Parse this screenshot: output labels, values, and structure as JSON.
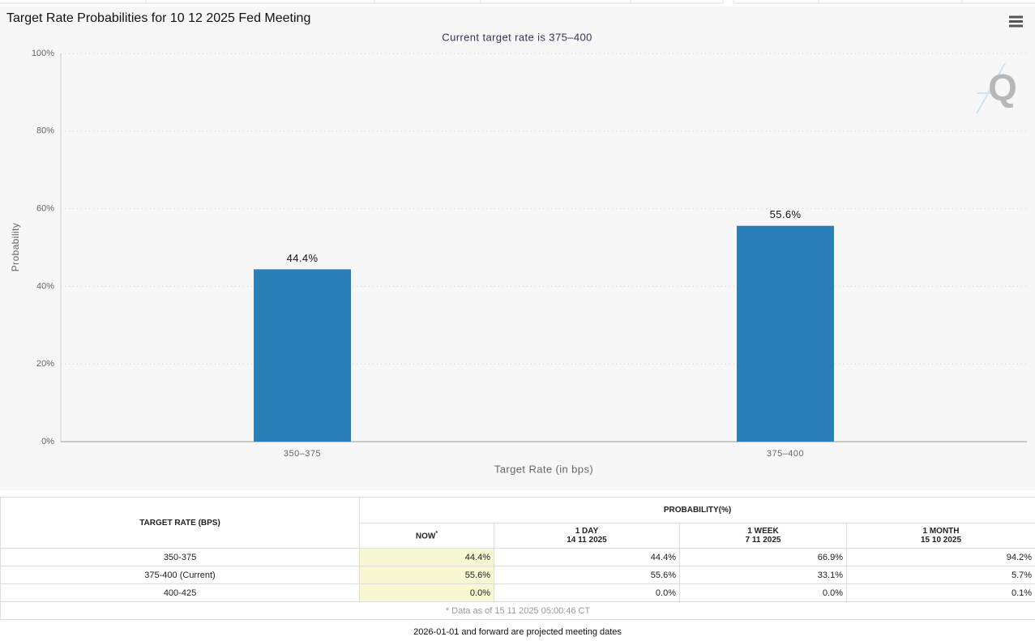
{
  "chart_data": {
    "type": "bar",
    "title": "Target Rate Probabilities for 10 12 2025 Fed Meeting",
    "subtitle": "Current target rate is 375–400",
    "x_label": "Target Rate (in bps)",
    "y_label": "Probability",
    "categories": [
      "350–375",
      "375–400"
    ],
    "values": [
      44.4,
      55.6
    ],
    "value_labels": [
      "44.4%",
      "55.6%"
    ],
    "color": "#2a7fb8",
    "ylim": [
      0,
      100
    ],
    "yticks": [
      {
        "value": 0,
        "label": "0%"
      },
      {
        "value": 20,
        "label": "20%"
      },
      {
        "value": 40,
        "label": "40%"
      },
      {
        "value": 60,
        "label": "60%"
      },
      {
        "value": 80,
        "label": "80%"
      },
      {
        "value": 100,
        "label": "100%"
      }
    ],
    "grid": true
  },
  "table": {
    "target_header": "TARGET RATE (BPS)",
    "probability_header": "PROBABILITY(%)",
    "columns": [
      {
        "label": "NOW",
        "mark": "*"
      },
      {
        "label": "1 DAY",
        "date": "14 11 2025"
      },
      {
        "label": "1 WEEK",
        "date": "7 11 2025"
      },
      {
        "label": "1 MONTH",
        "date": "15 10 2025"
      }
    ],
    "rows": [
      [
        "350-375",
        "44.4%",
        "44.4%",
        "66.9%",
        "94.2%"
      ],
      [
        "375-400 (Current)",
        "55.6%",
        "55.6%",
        "33.1%",
        "5.7%"
      ],
      [
        "400-425",
        "0.0%",
        "0.0%",
        "0.0%",
        "0.1%"
      ]
    ],
    "footnote": "* Data as of 15 11 2025 05:00:46 CT"
  },
  "note": "2026-01-01 and forward are projected meeting dates"
}
